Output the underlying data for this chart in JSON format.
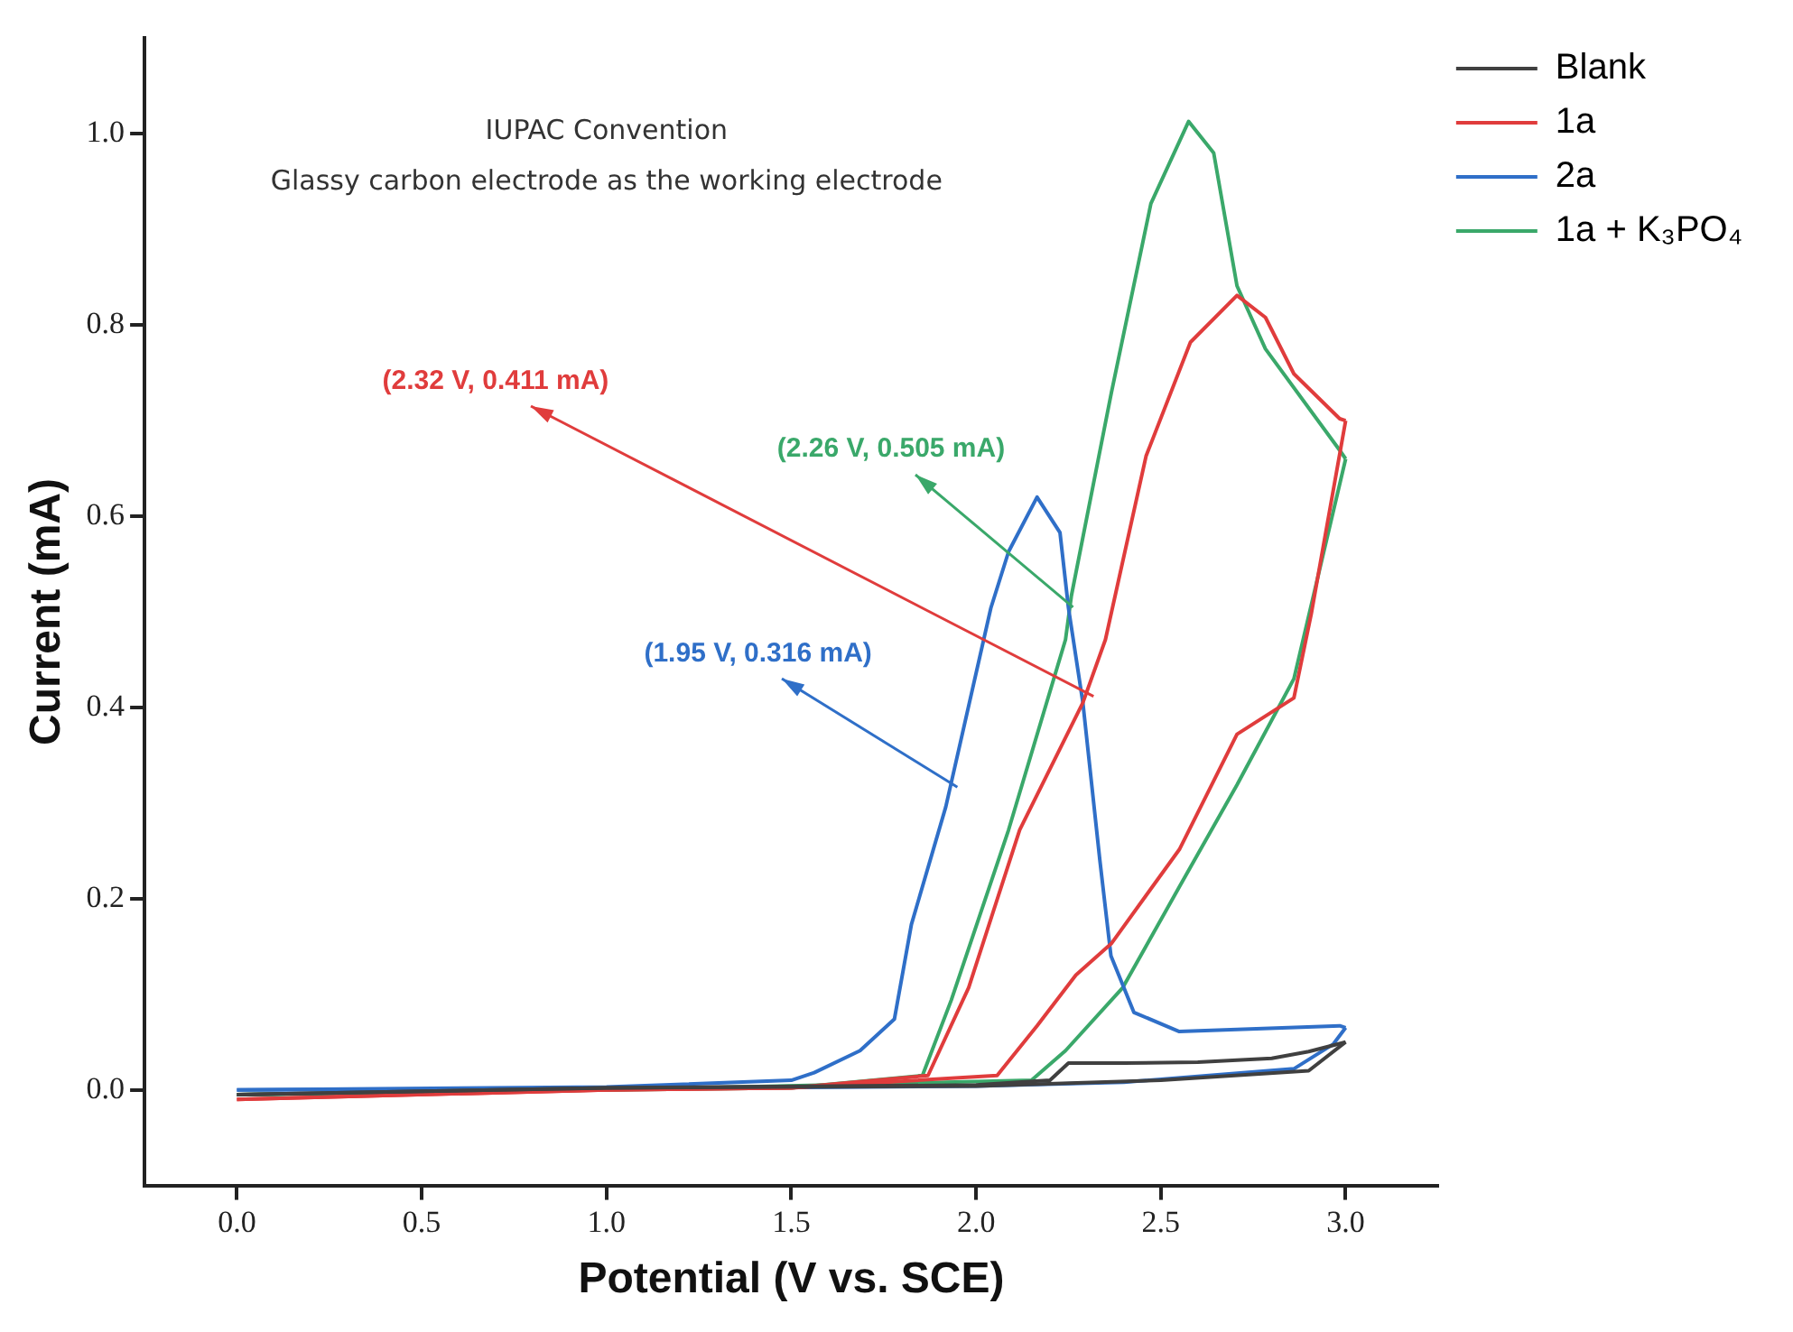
{
  "chart_data": {
    "type": "line",
    "xlabel": "Potential (V vs. SCE)",
    "ylabel": "Current (mA)",
    "annotations": [
      "IUPAC Convention",
      "Glassy carbon electrode as the working electrode",
      {
        "text": "(2.32 V, 0.411 mA)",
        "x": 2.32,
        "y": 0.411
      },
      {
        "text": "(2.26 V, 0.505 mA)",
        "x": 2.26,
        "y": 0.505
      },
      {
        "text": "(1.95 V, 0.316 mA)",
        "x": 1.95,
        "y": 0.316
      }
    ],
    "xlim": [
      -0.25,
      3.25
    ],
    "ylim": [
      -0.1,
      1.1
    ],
    "xticks": [
      {
        "value": 0,
        "label": "0.0"
      },
      {
        "value": 0.5,
        "label": "0.5"
      },
      {
        "value": 1,
        "label": "1.0"
      },
      {
        "value": 1.5,
        "label": "1.5"
      },
      {
        "value": 2,
        "label": "2.0"
      },
      {
        "value": 2.5,
        "label": "2.5"
      },
      {
        "value": 3,
        "label": "3.0"
      }
    ],
    "yticks": [
      {
        "value": 0,
        "label": "0.0"
      },
      {
        "value": 0.2,
        "label": "0.2"
      },
      {
        "value": 0.4,
        "label": "0.4"
      },
      {
        "value": 0.6,
        "label": "0.6"
      },
      {
        "value": 0.8,
        "label": "0.8"
      },
      {
        "value": 1,
        "label": "1.0"
      }
    ],
    "grid": false,
    "legend": "top right",
    "marker": "none",
    "line_style": "solid",
    "series": [
      {
        "name": "Blank",
        "color": "#404040",
        "x": [
          0,
          1,
          2,
          2.2,
          2.25,
          2.4,
          2.6,
          2.8,
          2.9,
          3
        ],
        "values": [
          -0.005,
          0.002,
          0.005,
          0.01,
          0.028,
          0.028,
          0.029,
          0.033,
          0.04,
          0.05
        ]
      },
      {
        "color": "#404040",
        "x": [
          3,
          2.9,
          2.5,
          2,
          1,
          0
        ],
        "values": [
          0.05,
          0.02,
          0.01,
          0.004,
          0.002,
          -0.005
        ]
      },
      {
        "name": "1a",
        "color": "#e03c3c",
        "x": [
          0,
          1,
          1.5,
          1.87,
          1.98,
          2.118,
          2.289,
          2.35,
          2.46,
          2.58,
          2.706,
          2.783,
          2.86,
          2.984,
          3
        ],
        "values": [
          -0.01,
          0,
          0.002,
          0.015,
          0.107,
          0.272,
          0.405,
          0.471,
          0.663,
          0.782,
          0.831,
          0.808,
          0.749,
          0.702,
          0.7
        ]
      },
      {
        "color": "#e03c3c",
        "x": [
          3,
          2.907,
          2.86,
          2.706,
          2.551,
          2.366,
          2.27,
          2.165,
          2.057,
          1.5,
          1,
          0
        ],
        "values": [
          0.7,
          0.498,
          0.41,
          0.372,
          0.252,
          0.153,
          0.12,
          0.067,
          0.015,
          0.002,
          0,
          -0.01
        ]
      },
      {
        "name": "2a",
        "color": "#2f6fc8",
        "x": [
          0,
          1,
          1.5,
          1.562,
          1.686,
          1.779,
          1.825,
          1.918,
          2.04,
          2.088,
          2.165,
          2.227,
          2.25,
          2.289,
          2.335,
          2.365,
          2.427,
          2.55,
          2.984,
          3
        ],
        "values": [
          0,
          0.003,
          0.01,
          0.018,
          0.041,
          0.074,
          0.173,
          0.296,
          0.504,
          0.563,
          0.62,
          0.583,
          0.504,
          0.405,
          0.24,
          0.14,
          0.081,
          0.061,
          0.067,
          0.065
        ]
      },
      {
        "color": "#2f6fc8",
        "x": [
          3,
          2.967,
          2.86,
          2.4,
          2,
          1,
          0
        ],
        "values": [
          0.065,
          0.048,
          0.022,
          0.008,
          0.004,
          0.001,
          0
        ]
      },
      {
        "name": "1a + K₃PO₄",
        "color": "#3aa86a",
        "x": [
          0,
          1,
          1.5,
          1.855,
          1.933,
          2.088,
          2.242,
          2.258,
          2.366,
          2.473,
          2.575,
          2.643,
          2.706,
          2.783,
          2.984,
          3
        ],
        "values": [
          -0.005,
          0,
          0.002,
          0.015,
          0.094,
          0.272,
          0.471,
          0.517,
          0.729,
          0.927,
          1.013,
          0.98,
          0.841,
          0.775,
          0.669,
          0.66
        ]
      },
      {
        "color": "#3aa86a",
        "x": [
          3,
          2.86,
          2.706,
          2.551,
          2.397,
          2.242,
          2.15,
          1,
          0
        ],
        "values": [
          0.66,
          0.43,
          0.319,
          0.213,
          0.107,
          0.041,
          0.01,
          0,
          -0.005
        ]
      }
    ]
  }
}
